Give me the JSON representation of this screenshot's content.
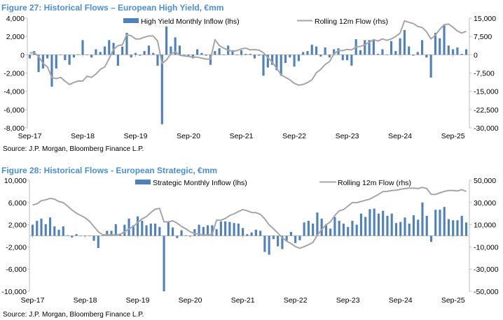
{
  "colors": {
    "bar": "#4f81bd",
    "line": "#a6a6a6",
    "title": "#4a8fd8"
  },
  "chart_data": [
    {
      "type": "bar",
      "title": "Figure 27: Historical Flows – European High Yield, €mm",
      "source": "Source: J.P. Morgan, Bloomberg Finance L.P.",
      "x_start": "Sep-17",
      "x_end": "Dec-25",
      "frequency": "monthly",
      "xtick_labels": [
        "Sep-17",
        "Sep-18",
        "Sep-19",
        "Sep-20",
        "Sep-21",
        "Sep-22",
        "Sep-23",
        "Sep-24",
        "Sep-25"
      ],
      "ylim_left": [
        -8000,
        4000
      ],
      "yticks_left": [
        "4,000",
        "2,000",
        "0",
        "-2,000",
        "-4,000",
        "-6,000",
        "-8,000"
      ],
      "ylim_right": [
        -30000,
        15000
      ],
      "yticks_right": [
        "15,000",
        "7,500",
        "0",
        "-7,500",
        "-15,000",
        "-22,500",
        "-30,000"
      ],
      "series": [
        {
          "name": "High Yield Monthly Inflow (lhs)",
          "kind": "bar",
          "axis": "left",
          "values": [
            -400,
            400,
            -1900,
            -1500,
            -400,
            -3500,
            -1500,
            0,
            -600,
            -1100,
            -300,
            50,
            1600,
            -50,
            -300,
            600,
            300,
            900,
            1600,
            1300,
            -1200,
            900,
            2400,
            -300,
            200,
            -100,
            400,
            1000,
            200,
            -1200,
            -7600,
            3100,
            900,
            1900,
            1000,
            -100,
            -200,
            -400,
            600,
            200,
            -100,
            -1100,
            400,
            700,
            0,
            1000,
            500,
            0,
            500,
            100,
            100,
            -400,
            -100,
            -2300,
            -1400,
            -1100,
            -1700,
            -2300,
            -900,
            -300,
            -1300,
            -700,
            300,
            400,
            1100,
            900,
            -200,
            800,
            -300,
            600,
            700,
            -600,
            -600,
            -1200,
            1700,
            500,
            1600,
            1600,
            1600,
            100,
            600,
            0,
            1500,
            400,
            1800,
            2700,
            900,
            -100,
            300,
            1600,
            -300,
            -2500,
            2400,
            1800,
            3200,
            1000,
            600,
            800,
            100,
            600
          ]
        },
        {
          "name": "Rolling 12m Flow (rhs)",
          "kind": "line",
          "axis": "right",
          "values": [
            770,
            800,
            -700,
            -3500,
            -5000,
            -9300,
            -9800,
            -9300,
            -10800,
            -12200,
            -11400,
            -10800,
            -10800,
            -8800,
            -9300,
            -7900,
            -6000,
            -5000,
            -1600,
            2200,
            3700,
            4100,
            8200,
            7800,
            6500,
            6500,
            7200,
            7700,
            7700,
            5600,
            -3600,
            -2100,
            300,
            1250,
            -200,
            -500,
            -700,
            -1000,
            -1000,
            -1400,
            -1800,
            -1800,
            6200,
            3700,
            2700,
            1900,
            1400,
            1700,
            2400,
            2700,
            2000,
            2100,
            1900,
            800,
            -1150,
            -3100,
            -5500,
            -8200,
            -9300,
            -10300,
            -11700,
            -12500,
            -12200,
            -11400,
            -10300,
            -7400,
            -6000,
            -4000,
            -2800,
            300,
            1700,
            1700,
            2200,
            2000,
            3200,
            3400,
            4100,
            5100,
            6200,
            5600,
            6500,
            5900,
            6500,
            7500,
            8900,
            13900,
            13300,
            12800,
            11600,
            11200,
            9400,
            6500,
            8000,
            10400,
            12300,
            12600,
            11300,
            9700,
            8900,
            9600
          ]
        }
      ]
    },
    {
      "type": "bar",
      "title": "Figure 28: Historical Flows - European Strategic, €mm",
      "source": "Source: J.P. Morgan, Bloomberg Finance L.P.",
      "x_start": "Sep-17",
      "x_end": "Dec-25",
      "frequency": "monthly",
      "xtick_labels": [
        "Sep-17",
        "Sep-18",
        "Sep-19",
        "Sep-20",
        "Sep-21",
        "Sep-22",
        "Sep-23",
        "Sep-24",
        "Sep-25"
      ],
      "ylim_left": [
        -10000,
        10000
      ],
      "yticks_left": [
        "10,000",
        "6,000",
        "2,000",
        "-2,000",
        "-6,000",
        "-10,000"
      ],
      "ylim_right": [
        -50000,
        50000
      ],
      "yticks_right": [
        "50,000",
        "30,000",
        "10,000",
        "-10,000",
        "-30,000",
        "-50,000"
      ],
      "series": [
        {
          "name": "Strategic Monthly Inflow (lhs)",
          "kind": "bar",
          "axis": "left",
          "values": [
            2000,
            2700,
            3100,
            2100,
            3300,
            1700,
            1100,
            1700,
            100,
            -300,
            300,
            0,
            -100,
            0,
            -900,
            -2200,
            0,
            900,
            900,
            2100,
            400,
            2000,
            3100,
            1900,
            3500,
            2700,
            1900,
            2200,
            2200,
            1600,
            -10000,
            2500,
            1500,
            -400,
            1000,
            100,
            -100,
            1200,
            2000,
            1600,
            1900,
            1900,
            1200,
            2600,
            2600,
            2500,
            2300,
            2200,
            1400,
            300,
            600,
            1100,
            900,
            -2900,
            -3400,
            -600,
            -1900,
            -2400,
            -1000,
            700,
            -1300,
            -800,
            2400,
            2700,
            2200,
            4200,
            3100,
            2100,
            1300,
            3400,
            2700,
            2200,
            1600,
            2700,
            2000,
            4000,
            3400,
            4800,
            4900,
            4000,
            4500,
            3600,
            4000,
            2300,
            2500,
            3300,
            2200,
            3700,
            2900,
            6000,
            3600,
            -1100,
            4700,
            4700,
            5200,
            3000,
            2800,
            2800,
            3600,
            2400
          ]
        },
        {
          "name": "Rolling 12m Flow (rhs)",
          "kind": "line",
          "axis": "right",
          "values": [
            27800,
            28800,
            31600,
            32400,
            33700,
            33000,
            30900,
            29900,
            26700,
            23200,
            20400,
            18300,
            16200,
            13000,
            8400,
            3600,
            1000,
            800,
            800,
            800,
            1300,
            3600,
            6300,
            8400,
            12000,
            15200,
            17300,
            21000,
            24000,
            24600,
            12600,
            12600,
            13500,
            11400,
            8400,
            6300,
            3600,
            2100,
            1500,
            800,
            800,
            1300,
            14100,
            14100,
            15600,
            18300,
            19800,
            21900,
            23600,
            22500,
            21000,
            20800,
            19400,
            15200,
            9900,
            6300,
            2500,
            -1700,
            -4800,
            -6900,
            -9700,
            -11200,
            -9700,
            -8000,
            -5900,
            400,
            5700,
            9900,
            12600,
            18300,
            22500,
            23600,
            26700,
            29900,
            29900,
            30900,
            32000,
            33000,
            35200,
            37300,
            39800,
            40000,
            40800,
            41000,
            41900,
            42500,
            42900,
            42900,
            42500,
            43600,
            42500,
            37300,
            37300,
            38700,
            40000,
            40800,
            40800,
            40400,
            41500,
            40000
          ]
        }
      ]
    }
  ]
}
